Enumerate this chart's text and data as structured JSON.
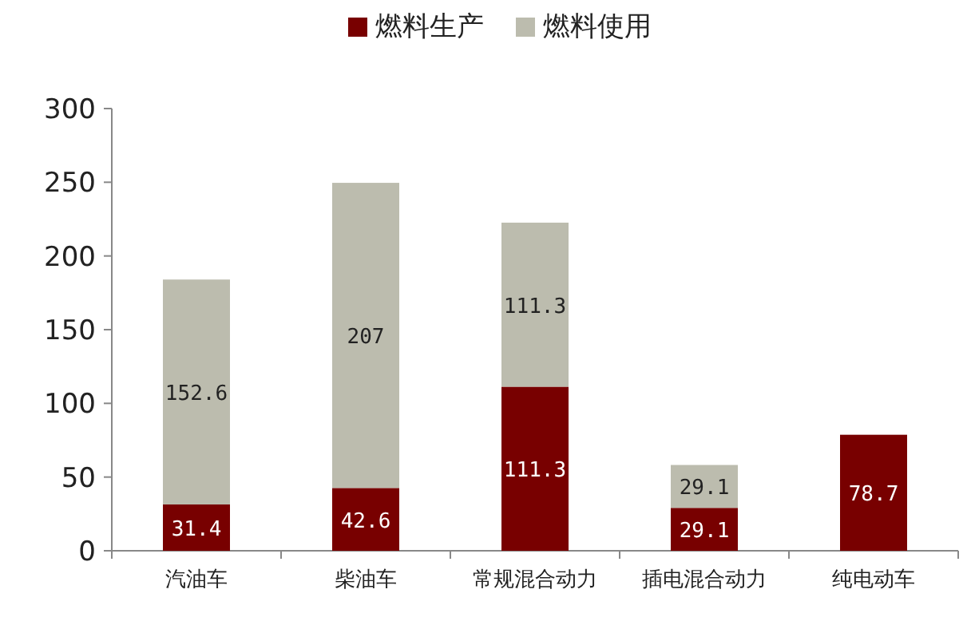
{
  "chart_data": {
    "type": "bar",
    "stacked": true,
    "data_labels": true,
    "legend": "top",
    "ylim": [
      0,
      300
    ],
    "yticks": [
      0,
      50,
      100,
      150,
      200,
      250,
      300
    ],
    "categories": [
      "汽油车",
      "柴油车",
      "常规混合动力",
      "插电混合动力",
      "纯电动车"
    ],
    "series": [
      {
        "name": "燃料生产",
        "color": "#780000",
        "values": [
          31.4,
          42.6,
          111.3,
          29.1,
          78.7
        ]
      },
      {
        "name": "燃料使用",
        "color": "#bcbcae",
        "values": [
          152.6,
          207,
          111.3,
          29.1,
          null
        ]
      }
    ]
  }
}
